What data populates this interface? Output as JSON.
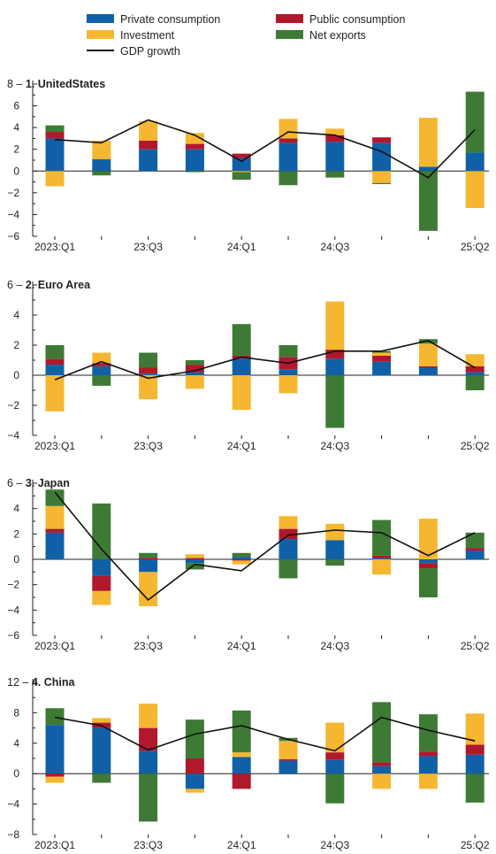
{
  "legend": [
    {
      "label": "Private consumption",
      "color": "#1060a8",
      "kind": "bar"
    },
    {
      "label": "Public consumption",
      "color": "#b0182c",
      "kind": "bar"
    },
    {
      "label": "Investment",
      "color": "#f5b731",
      "kind": "bar"
    },
    {
      "label": "Net exports",
      "color": "#3e7a35",
      "kind": "bar"
    },
    {
      "label": "GDP growth",
      "color": "#111111",
      "kind": "line"
    }
  ],
  "chart_data": [
    {
      "type": "bar",
      "stacked": true,
      "title": "1. UnitedStates",
      "panel_number": "1.",
      "panel_name": "UnitedStates",
      "categories": [
        "2023:Q1",
        "2023:Q2",
        "2023:Q3",
        "2023:Q4",
        "2024:Q1",
        "2024:Q2",
        "2024:Q3",
        "2024:Q4",
        "2025:Q1",
        "2025:Q2"
      ],
      "x_tick_labels": [
        "2023:Q1",
        "",
        "23:Q3",
        "",
        "24:Q1",
        "",
        "24:Q3",
        "",
        "",
        "25:Q2"
      ],
      "ylim": [
        -6,
        8
      ],
      "yticks": [
        -6,
        -4,
        -2,
        0,
        2,
        4,
        6,
        8
      ],
      "series": [
        {
          "name": "Private consumption",
          "values": [
            3.0,
            1.1,
            2.0,
            2.0,
            1.2,
            2.6,
            2.7,
            2.6,
            0.4,
            1.7
          ]
        },
        {
          "name": "Public consumption",
          "values": [
            0.6,
            0.0,
            0.8,
            0.5,
            0.4,
            0.4,
            0.6,
            0.5,
            0.0,
            0.0
          ]
        },
        {
          "name": "Investment",
          "values": [
            -1.4,
            1.7,
            1.8,
            1.0,
            -0.1,
            1.8,
            0.6,
            -1.1,
            4.5,
            -3.4
          ]
        },
        {
          "name": "Net exports",
          "values": [
            0.6,
            -0.4,
            0.0,
            -0.1,
            -0.7,
            -1.3,
            -0.6,
            -0.1,
            -5.5,
            5.6
          ]
        }
      ],
      "line": {
        "name": "GDP growth",
        "values": [
          2.9,
          2.6,
          4.7,
          3.3,
          0.9,
          3.6,
          3.3,
          1.8,
          -0.6,
          3.8
        ]
      }
    },
    {
      "type": "bar",
      "stacked": true,
      "title": "2. Euro Area",
      "panel_number": "2.",
      "panel_name": "Euro Area",
      "categories": [
        "2023:Q1",
        "2023:Q2",
        "2023:Q3",
        "2023:Q4",
        "2024:Q1",
        "2024:Q2",
        "2024:Q3",
        "2024:Q4",
        "2025:Q1",
        "2025:Q2"
      ],
      "x_tick_labels": [
        "2023:Q1",
        "",
        "23:Q3",
        "",
        "24:Q1",
        "",
        "24:Q3",
        "",
        "",
        "25:Q2"
      ],
      "ylim": [
        -4,
        6
      ],
      "yticks": [
        -4,
        -2,
        0,
        2,
        4,
        6
      ],
      "series": [
        {
          "name": "Private consumption",
          "values": [
            0.7,
            0.6,
            0.1,
            0.2,
            1.1,
            0.4,
            1.1,
            0.9,
            0.5,
            0.2
          ]
        },
        {
          "name": "Public consumption",
          "values": [
            0.4,
            0.2,
            0.4,
            0.5,
            0.2,
            0.8,
            0.6,
            0.4,
            0.1,
            0.4
          ]
        },
        {
          "name": "Investment",
          "values": [
            -2.4,
            0.7,
            -1.6,
            -0.9,
            -2.3,
            -1.2,
            3.2,
            0.2,
            1.5,
            0.8
          ]
        },
        {
          "name": "Net exports",
          "values": [
            0.9,
            -0.7,
            1.0,
            0.3,
            2.1,
            0.8,
            -3.5,
            0.1,
            0.3,
            -1.0
          ]
        }
      ],
      "line": {
        "name": "GDP growth",
        "values": [
          -0.3,
          0.9,
          -0.2,
          0.3,
          1.2,
          0.8,
          1.6,
          1.6,
          2.3,
          0.5
        ]
      }
    },
    {
      "type": "bar",
      "stacked": true,
      "title": "3. Japan",
      "panel_number": "3.",
      "panel_name": "Japan",
      "categories": [
        "2023:Q1",
        "2023:Q2",
        "2023:Q3",
        "2023:Q4",
        "2024:Q1",
        "2024:Q2",
        "2024:Q3",
        "2024:Q4",
        "2025:Q1",
        "2025:Q2"
      ],
      "x_tick_labels": [
        "2023:Q1",
        "",
        "23:Q3",
        "",
        "24:Q1",
        "",
        "24:Q3",
        "",
        "",
        "25:Q2"
      ],
      "ylim": [
        -6,
        6
      ],
      "yticks": [
        -6,
        -4,
        -2,
        0,
        2,
        4,
        6
      ],
      "series": [
        {
          "name": "Private consumption",
          "values": [
            2.1,
            -1.3,
            -1.0,
            -0.3,
            0.2,
            1.6,
            1.5,
            0.1,
            -0.3,
            0.7
          ]
        },
        {
          "name": "Public consumption",
          "values": [
            0.3,
            -1.2,
            0.1,
            0.1,
            -0.1,
            0.8,
            0.0,
            0.2,
            -0.4,
            0.2
          ]
        },
        {
          "name": "Investment",
          "values": [
            1.8,
            -1.1,
            -2.7,
            0.3,
            -0.3,
            1.0,
            1.3,
            -1.2,
            3.2,
            0.0
          ]
        },
        {
          "name": "Net exports",
          "values": [
            1.3,
            4.4,
            0.4,
            -0.5,
            0.3,
            -1.5,
            -0.5,
            2.8,
            -2.3,
            1.2
          ]
        }
      ],
      "line": {
        "name": "GDP growth",
        "values": [
          5.3,
          0.8,
          -3.2,
          -0.4,
          -0.9,
          1.9,
          2.3,
          2.1,
          0.3,
          2.1
        ]
      }
    },
    {
      "type": "bar",
      "stacked": true,
      "title": "4. China",
      "panel_number": "4.",
      "panel_name": "China",
      "categories": [
        "2023:Q1",
        "2023:Q2",
        "2023:Q3",
        "2023:Q4",
        "2024:Q1",
        "2024:Q2",
        "2024:Q3",
        "2024:Q4",
        "2025:Q1",
        "2025:Q2"
      ],
      "x_tick_labels": [
        "2023:Q1",
        "",
        "23:Q3",
        "",
        "24:Q1",
        "",
        "24:Q3",
        "",
        "",
        "25:Q2"
      ],
      "ylim": [
        -8,
        12
      ],
      "yticks": [
        -8,
        -4,
        0,
        4,
        8,
        12
      ],
      "series": [
        {
          "name": "Private consumption",
          "values": [
            6.4,
            6.0,
            3.0,
            -2.0,
            2.2,
            1.7,
            1.8,
            1.0,
            2.3,
            2.5
          ]
        },
        {
          "name": "Public consumption",
          "values": [
            -0.4,
            0.7,
            3.0,
            2.0,
            -2.0,
            0.2,
            1.0,
            0.5,
            0.6,
            1.3
          ]
        },
        {
          "name": "Investment",
          "values": [
            -0.8,
            0.6,
            3.2,
            -0.5,
            0.6,
            2.4,
            3.9,
            -2.0,
            -2.0,
            4.1
          ]
        },
        {
          "name": "Net exports",
          "values": [
            2.2,
            -1.2,
            -6.3,
            5.1,
            5.5,
            0.4,
            -3.9,
            7.9,
            4.9,
            -3.8
          ]
        }
      ],
      "line": {
        "name": "GDP growth",
        "values": [
          7.4,
          6.3,
          3.1,
          5.2,
          6.3,
          4.5,
          3.0,
          7.4,
          5.7,
          4.3
        ]
      }
    }
  ]
}
